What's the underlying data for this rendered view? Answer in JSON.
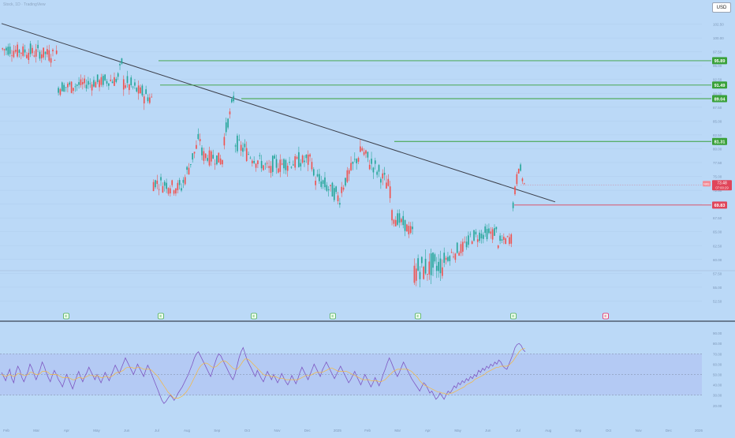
{
  "header": {
    "symbol": "Stock, 1D",
    "subtitle": "TradingView",
    "currency_button": "USD"
  },
  "colors": {
    "background": "#bbd9f7",
    "bull": "#26a69a",
    "bear": "#ef5350",
    "level_green": "#3aa13a",
    "level_red": "#e0455a",
    "trendline": "#3c3f4a",
    "rsi_line": "#7e57c2",
    "rsi_ma": "#f5b942",
    "rsi_band": "#aeb8f0",
    "earnings_marker": "#4caf50",
    "earnings_upcoming": "#e91e63"
  },
  "chart_data": [
    {
      "type": "candlestick",
      "title": "",
      "y_axis_side": "right",
      "ylim": [
        51,
        104
      ],
      "price_levels": [
        {
          "label": "95.89",
          "value": 95.89,
          "color": "green"
        },
        {
          "label": "91.49",
          "value": 91.49,
          "color": "green"
        },
        {
          "label": "89.04",
          "value": 89.04,
          "color": "green"
        },
        {
          "label": "81.31",
          "value": 81.31,
          "color": "green"
        },
        {
          "label": "69.83",
          "value": 69.83,
          "color": "red"
        }
      ],
      "current_price": {
        "symbol": "NKE",
        "label": "73.48",
        "countdown": "07:00:29",
        "value": 73.48
      },
      "trendline": {
        "start": {
          "t": 0,
          "price": 102.6
        },
        "end": {
          "t": 1.0,
          "price": 70.4
        }
      },
      "x_tick_labels": [
        "Feb",
        "Mar",
        "Apr",
        "May",
        "Jun",
        "Jul",
        "Aug",
        "Sep",
        "Oct",
        "Nov",
        "Dec",
        "2025",
        "Feb",
        "Mar",
        "Apr",
        "May",
        "Jun",
        "Jul",
        "Aug",
        "Sep",
        "Oct",
        "Nov",
        "Dec",
        "2026"
      ],
      "earnings_markers": [
        {
          "label": "E",
          "upcoming": false
        },
        {
          "label": "E",
          "upcoming": false
        },
        {
          "label": "E",
          "upcoming": false
        },
        {
          "label": "E",
          "upcoming": false
        },
        {
          "label": "E",
          "upcoming": false
        },
        {
          "label": "E",
          "upcoming": false
        },
        {
          "label": "E",
          "upcoming": true
        }
      ],
      "segments": [
        {
          "n": 30,
          "start": 98.0,
          "end": 97.0,
          "vol": 1.1
        },
        {
          "n": 32,
          "start": 91.0,
          "end": 92.5,
          "vol": 1.0
        },
        {
          "n": 3,
          "start": 93.0,
          "end": 95.5,
          "vol": 0.9
        },
        {
          "n": 16,
          "start": 92.0,
          "end": 89.0,
          "vol": 1.2
        },
        {
          "n": 16,
          "start": 74.0,
          "end": 73.0,
          "vol": 1.1
        },
        {
          "n": 10,
          "start": 74.0,
          "end": 82.0,
          "vol": 1.1
        },
        {
          "n": 12,
          "start": 79.0,
          "end": 78.0,
          "vol": 1.1
        },
        {
          "n": 6,
          "start": 82.0,
          "end": 89.0,
          "vol": 1.0
        },
        {
          "n": 20,
          "start": 81.0,
          "end": 76.0,
          "vol": 1.2
        },
        {
          "n": 22,
          "start": 77.0,
          "end": 78.0,
          "vol": 1.2
        },
        {
          "n": 15,
          "start": 75.0,
          "end": 71.0,
          "vol": 1.2
        },
        {
          "n": 12,
          "start": 73.0,
          "end": 80.0,
          "vol": 1.3
        },
        {
          "n": 15,
          "start": 79.0,
          "end": 73.0,
          "vol": 1.3
        },
        {
          "n": 12,
          "start": 68.0,
          "end": 65.0,
          "vol": 1.0
        },
        {
          "n": 16,
          "start": 58.0,
          "end": 59.0,
          "vol": 1.8
        },
        {
          "n": 14,
          "start": 60.0,
          "end": 63.0,
          "vol": 1.0
        },
        {
          "n": 15,
          "start": 64.0,
          "end": 65.0,
          "vol": 1.0
        },
        {
          "n": 8,
          "start": 63.0,
          "end": 64.0,
          "vol": 0.8
        },
        {
          "n": 4,
          "start": 70.0,
          "end": 77.0,
          "vol": 1.0
        },
        {
          "n": 3,
          "start": 76.0,
          "end": 73.5,
          "vol": 0.8
        }
      ]
    },
    {
      "type": "line",
      "title": "",
      "ylim": [
        0,
        100
      ],
      "band": [
        30,
        70
      ],
      "midline": 50,
      "y_tick_labels": [
        "90.00",
        "80.00",
        "70.00",
        "60.00",
        "50.00",
        "40.00",
        "30.00",
        "20.00"
      ],
      "series": [
        {
          "values": [
            52,
            48,
            44,
            50,
            55,
            46,
            42,
            52,
            58,
            54,
            47,
            43,
            48,
            53,
            60,
            56,
            50,
            45,
            50,
            55,
            62,
            58,
            52,
            47,
            43,
            49,
            54,
            50,
            45,
            42,
            38,
            44,
            50,
            46,
            41,
            36,
            42,
            48,
            53,
            47,
            43,
            48,
            52,
            57,
            53,
            49,
            45,
            50,
            46,
            42,
            47,
            52,
            48,
            44,
            49,
            54,
            59,
            55,
            51,
            56,
            61,
            66,
            62,
            58,
            54,
            50,
            55,
            60,
            56,
            52,
            48,
            54,
            59,
            55,
            50,
            45,
            40,
            35,
            30,
            25,
            22,
            24,
            27,
            30,
            28,
            25,
            28,
            32,
            35,
            38,
            42,
            46,
            50,
            55,
            60,
            66,
            70,
            72,
            68,
            64,
            60,
            56,
            52,
            48,
            54,
            60,
            66,
            70,
            68,
            64,
            60,
            56,
            52,
            48,
            45,
            50,
            58,
            66,
            72,
            76,
            70,
            64,
            60,
            56,
            52,
            48,
            54,
            50,
            46,
            43,
            48,
            53,
            49,
            45,
            50,
            46,
            42,
            46,
            51,
            47,
            43,
            40,
            44,
            49,
            45,
            41,
            46,
            52,
            57,
            53,
            49,
            45,
            50,
            55,
            60,
            56,
            52,
            48,
            54,
            58,
            62,
            58,
            54,
            50,
            46,
            50,
            54,
            58,
            54,
            50,
            46,
            42,
            45,
            49,
            53,
            48,
            44,
            40,
            45,
            50,
            46,
            42,
            38,
            42,
            47,
            43,
            39,
            44,
            50,
            55,
            61,
            66,
            62,
            57,
            52,
            48,
            52,
            57,
            62,
            58,
            54,
            50,
            46,
            43,
            40,
            37,
            34,
            38,
            42,
            40,
            36,
            32,
            34,
            30,
            26,
            28,
            32,
            29,
            26,
            30,
            34,
            32,
            35,
            39,
            37,
            42,
            40,
            44,
            42,
            46,
            44,
            48,
            46,
            50,
            48,
            54,
            52,
            56,
            54,
            58,
            56,
            60,
            58,
            62,
            60,
            64,
            62,
            58,
            56,
            55,
            60,
            65,
            70,
            76,
            79,
            80,
            78,
            74,
            72
          ]
        },
        {
          "values": [
            50,
            49,
            48,
            49,
            50,
            49,
            48,
            49,
            51,
            51,
            50,
            49,
            49,
            50,
            52,
            52,
            51,
            50,
            50,
            51,
            53,
            53,
            53,
            52,
            50,
            50,
            50,
            50,
            49,
            48,
            47,
            47,
            47,
            47,
            46,
            45,
            45,
            46,
            47,
            47,
            46,
            47,
            48,
            49,
            49,
            49,
            48,
            49,
            48,
            47,
            47,
            48,
            48,
            47,
            48,
            49,
            51,
            52,
            52,
            53,
            54,
            56,
            57,
            57,
            57,
            56,
            56,
            57,
            57,
            56,
            55,
            55,
            55,
            55,
            54,
            52,
            50,
            48,
            45,
            42,
            39,
            36,
            33,
            31,
            29,
            27,
            27,
            27,
            28,
            29,
            31,
            33,
            36,
            39,
            43,
            47,
            51,
            55,
            58,
            60,
            61,
            61,
            60,
            58,
            57,
            57,
            58,
            60,
            62,
            63,
            63,
            62,
            60,
            58,
            56,
            55,
            55,
            57,
            60,
            63,
            65,
            65,
            64,
            62,
            60,
            58,
            56,
            54,
            52,
            50,
            49,
            49,
            49,
            48,
            48,
            48,
            47,
            46,
            46,
            46,
            45,
            45,
            45,
            45,
            45,
            45,
            45,
            46,
            47,
            48,
            49,
            49,
            49,
            50,
            51,
            52,
            52,
            52,
            52,
            53,
            54,
            55,
            56,
            56,
            55,
            54,
            53,
            53,
            53,
            53,
            53,
            52,
            51,
            50,
            49,
            48,
            47,
            46,
            45,
            45,
            45,
            45,
            44,
            44,
            44,
            44,
            43,
            43,
            44,
            45,
            47,
            49,
            51,
            53,
            54,
            55,
            55,
            55,
            55,
            55,
            55,
            54,
            53,
            51,
            49,
            47,
            44,
            42,
            40,
            39,
            38,
            37,
            36,
            35,
            34,
            33,
            33,
            32,
            32,
            31,
            31,
            32,
            32,
            33,
            34,
            35,
            36,
            37,
            38,
            40,
            41,
            42,
            43,
            45,
            46,
            47,
            48,
            49,
            50,
            52,
            53,
            54,
            55,
            56,
            57,
            57,
            58,
            58,
            58,
            58,
            59,
            61,
            63,
            66,
            69,
            72,
            74,
            75,
            75
          ]
        }
      ]
    }
  ]
}
